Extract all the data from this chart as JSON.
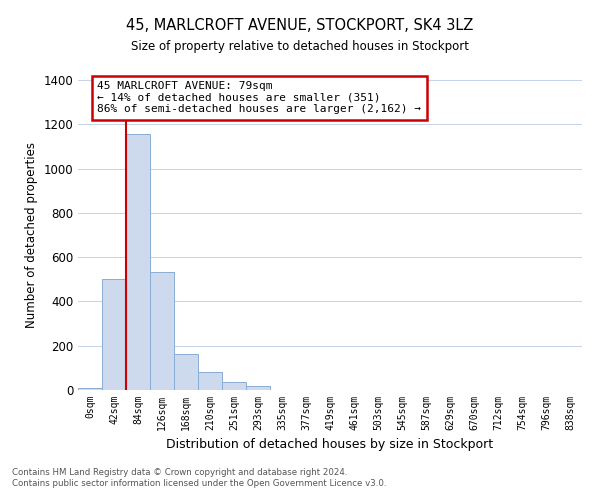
{
  "title": "45, MARLCROFT AVENUE, STOCKPORT, SK4 3LZ",
  "subtitle": "Size of property relative to detached houses in Stockport",
  "xlabel": "Distribution of detached houses by size in Stockport",
  "ylabel": "Number of detached properties",
  "bar_labels": [
    "0sqm",
    "42sqm",
    "84sqm",
    "126sqm",
    "168sqm",
    "210sqm",
    "251sqm",
    "293sqm",
    "335sqm",
    "377sqm",
    "419sqm",
    "461sqm",
    "503sqm",
    "545sqm",
    "587sqm",
    "629sqm",
    "670sqm",
    "712sqm",
    "754sqm",
    "796sqm",
    "838sqm"
  ],
  "bar_heights": [
    10,
    500,
    1155,
    535,
    163,
    83,
    35,
    18,
    0,
    0,
    0,
    0,
    0,
    0,
    0,
    0,
    0,
    0,
    0,
    0,
    0
  ],
  "bar_color": "#cdd9ec",
  "bar_edge_color": "#8aadd4",
  "marker_color": "#cc0000",
  "ylim": [
    0,
    1400
  ],
  "yticks": [
    0,
    200,
    400,
    600,
    800,
    1000,
    1200,
    1400
  ],
  "annotation_title": "45 MARLCROFT AVENUE: 79sqm",
  "annotation_line1": "← 14% of detached houses are smaller (351)",
  "annotation_line2": "86% of semi-detached houses are larger (2,162) →",
  "annotation_box_color": "#ffffff",
  "annotation_box_edge": "#cc0000",
  "footer_line1": "Contains HM Land Registry data © Crown copyright and database right 2024.",
  "footer_line2": "Contains public sector information licensed under the Open Government Licence v3.0.",
  "bg_color": "#ffffff",
  "grid_color": "#c5d3e8"
}
